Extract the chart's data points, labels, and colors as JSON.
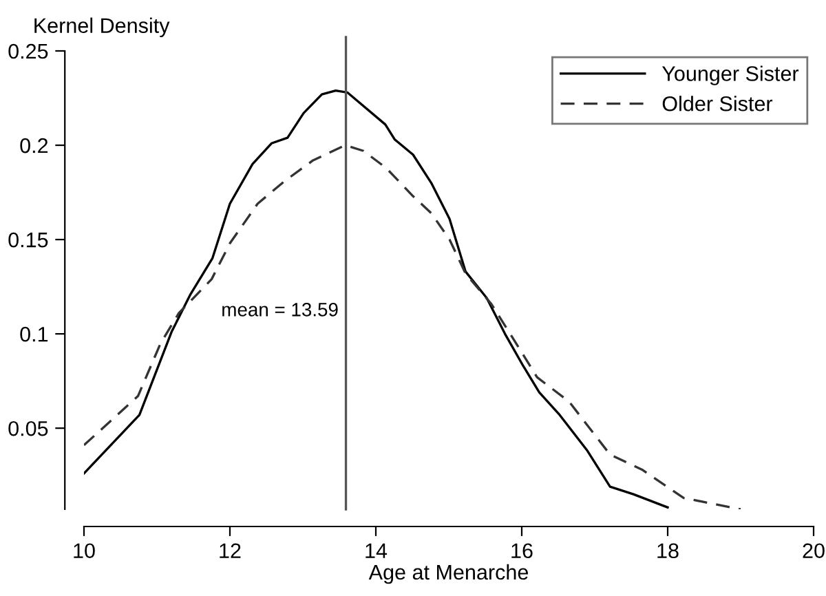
{
  "chart_data": {
    "type": "line",
    "xlabel": "Age at Menarche",
    "ylabel": "Kernel Density",
    "xlim": [
      10,
      20
    ],
    "xticks": [
      10,
      12,
      14,
      16,
      18,
      20
    ],
    "ylim": [
      0.007,
      0.25
    ],
    "yticks": [
      0.05,
      0.1,
      0.15,
      0.2,
      0.25
    ],
    "grid": false,
    "legend": "top right",
    "series": [
      {
        "name": "Younger Sister",
        "color": "#000000",
        "line_style": "solid",
        "x": [
          10,
          10.76,
          10.98,
          11.2,
          11.46,
          11.76,
          12.0,
          12.31,
          12.57,
          12.79,
          13.01,
          13.26,
          13.45,
          13.61,
          14.13,
          14.26,
          14.51,
          14.76,
          15.01,
          15.23,
          15.52,
          15.77,
          16.02,
          16.24,
          16.52,
          16.9,
          17.21,
          17.53,
          18.0
        ],
        "values": [
          0.026,
          0.057,
          0.079,
          0.101,
          0.121,
          0.14,
          0.169,
          0.19,
          0.201,
          0.204,
          0.217,
          0.227,
          0.229,
          0.228,
          0.211,
          0.203,
          0.195,
          0.18,
          0.161,
          0.133,
          0.119,
          0.1,
          0.083,
          0.069,
          0.057,
          0.038,
          0.019,
          0.015,
          0.008
        ]
      },
      {
        "name": "Older Sister",
        "color": "#333333",
        "line_style": "dashed",
        "x": [
          10,
          10.74,
          11.05,
          11.3,
          11.75,
          12.0,
          12.38,
          12.75,
          13.14,
          13.58,
          13.83,
          14.14,
          14.51,
          14.76,
          15.01,
          15.23,
          15.58,
          15.89,
          16.21,
          16.65,
          17.21,
          17.65,
          18.22,
          19.0
        ],
        "values": [
          0.041,
          0.067,
          0.095,
          0.111,
          0.129,
          0.148,
          0.169,
          0.181,
          0.192,
          0.2,
          0.197,
          0.188,
          0.173,
          0.164,
          0.15,
          0.132,
          0.116,
          0.097,
          0.077,
          0.064,
          0.036,
          0.028,
          0.013,
          0.007
        ]
      }
    ],
    "ref_lines": [
      {
        "axis": "x",
        "value": 13.59,
        "label": "mean = 13.59",
        "color": "#555555",
        "line_style": "solid"
      }
    ]
  }
}
